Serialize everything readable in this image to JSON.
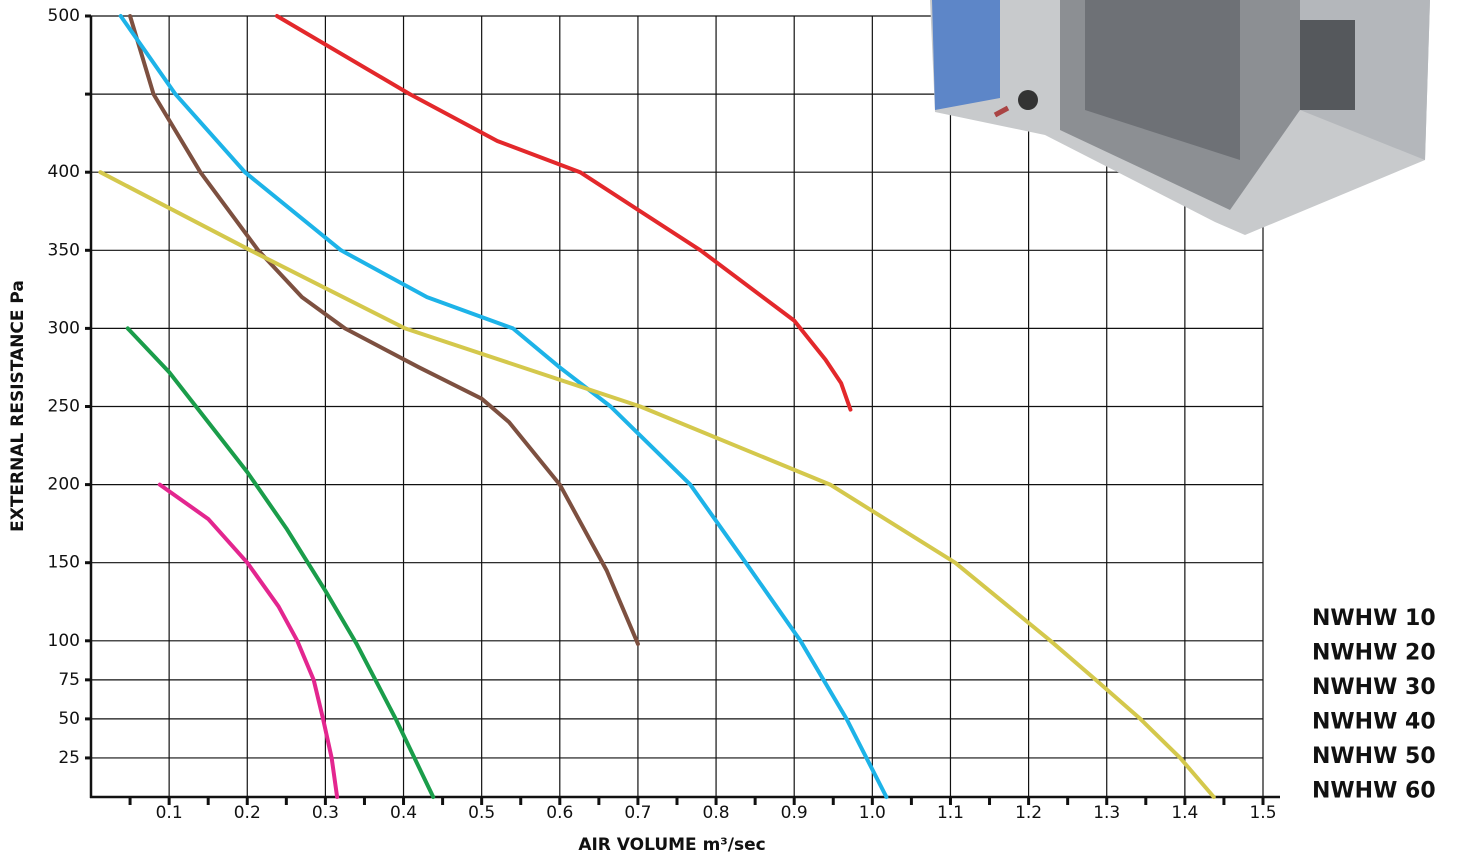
{
  "chart_data": {
    "type": "line",
    "x_label": "AIR VOLUME m³/sec",
    "y_label": "EXTERNAL RESISTANCE Pa",
    "xlim": [
      0,
      1.5
    ],
    "ylim": [
      0,
      500
    ],
    "xticks": [
      0.1,
      0.2,
      0.3,
      0.4,
      0.5,
      0.6,
      0.7,
      0.8,
      0.9,
      {
        "value": 1.0,
        "label": "1.0"
      },
      1.1,
      1.2,
      1.3,
      1.4,
      1.5
    ],
    "yticks": [
      25,
      50,
      75,
      100,
      150,
      200,
      250,
      300,
      350,
      400,
      500
    ],
    "yticks_unlabeled": [
      450
    ],
    "grid": true,
    "series": [
      {
        "name": "NWHW 10",
        "color": "#e3268f",
        "x": [
          0.088,
          0.15,
          0.2,
          0.24,
          0.264,
          0.285,
          0.297,
          0.308,
          0.315
        ],
        "values": [
          200,
          178,
          150,
          122,
          100,
          75,
          50,
          25,
          0
        ]
      },
      {
        "name": "NWHW 20",
        "color": "#1a9d4a",
        "x": [
          0.047,
          0.1,
          0.15,
          0.2,
          0.25,
          0.3,
          0.34,
          0.39,
          0.438
        ],
        "values": [
          300,
          272,
          240,
          208,
          172,
          132,
          98,
          50,
          0
        ]
      },
      {
        "name": "NWHW 30",
        "color": "#7d5040",
        "x": [
          0.05,
          0.08,
          0.14,
          0.214,
          0.27,
          0.325,
          0.42,
          0.5,
          0.535,
          0.6,
          0.66,
          0.7
        ],
        "values": [
          500,
          450,
          400,
          350,
          320,
          300,
          275,
          255,
          240,
          200,
          145,
          98
        ]
      },
      {
        "name": "NWHW 40",
        "color": "#1db3e8",
        "x": [
          0.038,
          0.108,
          0.197,
          0.32,
          0.43,
          0.54,
          0.6,
          0.665,
          0.767,
          0.838,
          0.908,
          0.967,
          1.018
        ],
        "values": [
          500,
          450,
          400,
          350,
          320,
          300,
          275,
          250,
          200,
          150,
          100,
          50,
          0
        ]
      },
      {
        "name": "NWHW 50",
        "color": "#e3282b",
        "x": [
          0.238,
          0.408,
          0.52,
          0.626,
          0.78,
          0.9,
          0.94,
          0.96,
          0.972
        ],
        "values": [
          500,
          450,
          420,
          400,
          350,
          305,
          280,
          265,
          248
        ]
      },
      {
        "name": "NWHW 60",
        "color": "#d4c84c",
        "x": [
          0.012,
          0.204,
          0.402,
          0.703,
          0.946,
          1.106,
          1.228,
          1.286,
          1.343,
          1.394,
          1.437
        ],
        "values": [
          400,
          350,
          300,
          250,
          200,
          150,
          100,
          75,
          50,
          25,
          0
        ]
      }
    ]
  }
}
